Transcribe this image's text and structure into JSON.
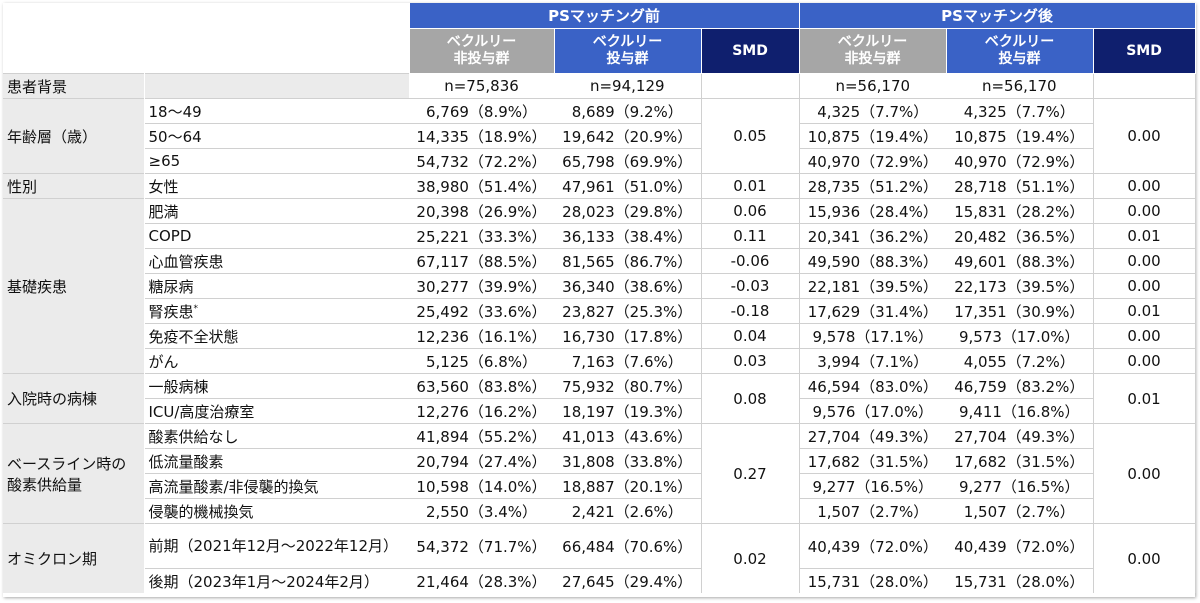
{
  "header": {
    "before_group": "PSマッチング前",
    "after_group": "PSマッチング後",
    "col_nonbec": [
      "ベクルリー",
      "非投与群"
    ],
    "col_bec": [
      "ベクルリー",
      "投与群"
    ],
    "col_smd": "SMD"
  },
  "background_row": {
    "label": "患者背景",
    "before_non": "n=75,836",
    "before_bec": "n=94,129",
    "after_non": "n=56,170",
    "after_bec": "n=56,170"
  },
  "rows": {
    "age": {
      "label": "年齢層（歳）",
      "smd_before": "0.05",
      "smd_after": "0.00",
      "items": [
        {
          "sub": "18～49",
          "bn": "6,769（8.9%）",
          "bb": "8,689（9.2%）",
          "an": "4,325（7.7%）",
          "ab": "4,325（7.7%）"
        },
        {
          "sub": "50～64",
          "bn": "14,335（18.9%）",
          "bb": "19,642（20.9%）",
          "an": "10,875（19.4%）",
          "ab": "10,875（19.4%）"
        },
        {
          "sub": "≥65",
          "bn": "54,732（72.2%）",
          "bb": "65,798（69.9%）",
          "an": "40,970（72.9%）",
          "ab": "40,970（72.9%）"
        }
      ]
    },
    "sex": {
      "label": "性別",
      "sub": "女性",
      "bn": "38,980（51.4%）",
      "bb": "47,961（51.0%）",
      "smd_before": "0.01",
      "an": "28,735（51.2%）",
      "ab": "28,718（51.1%）",
      "smd_after": "0.00"
    },
    "disease": {
      "label": "基礎疾患",
      "items": [
        {
          "sub": "肥満",
          "bn": "20,398（26.9%）",
          "bb": "28,023（29.8%）",
          "sb": "0.06",
          "an": "15,936（28.4%）",
          "ab": "15,831（28.2%）",
          "sa": "0.00"
        },
        {
          "sub": "COPD",
          "bn": "25,221（33.3%）",
          "bb": "36,133（38.4%）",
          "sb": "0.11",
          "an": "20,341（36.2%）",
          "ab": "20,482（36.5%）",
          "sa": "0.01"
        },
        {
          "sub": "心血管疾患",
          "bn": "67,117（88.5%）",
          "bb": "81,565（86.7%）",
          "sb": "-0.06",
          "an": "49,590（88.3%）",
          "ab": "49,601（88.3%）",
          "sa": "0.00"
        },
        {
          "sub": "糖尿病",
          "bn": "30,277（39.9%）",
          "bb": "36,340（38.6%）",
          "sb": "-0.03",
          "an": "22,181（39.5%）",
          "ab": "22,173（39.5%）",
          "sa": "0.00"
        },
        {
          "sub": "腎疾患",
          "sup": "*",
          "bn": "25,492（33.6%）",
          "bb": "23,827（25.3%）",
          "sb": "-0.18",
          "an": "17,629（31.4%）",
          "ab": "17,351（30.9%）",
          "sa": "0.01"
        },
        {
          "sub": "免疫不全状態",
          "bn": "12,236（16.1%）",
          "bb": "16,730（17.8%）",
          "sb": "0.04",
          "an": "9,578（17.1%）",
          "ab": "9,573（17.0%）",
          "sa": "0.00"
        },
        {
          "sub": "がん",
          "bn": "5,125（6.8%）",
          "bb": "7,163（7.6%）",
          "sb": "0.03",
          "an": "3,994（7.1%）",
          "ab": "4,055（7.2%）",
          "sa": "0.00"
        }
      ]
    },
    "ward": {
      "label": "入院時の病棟",
      "smd_before": "0.08",
      "smd_after": "0.01",
      "items": [
        {
          "sub": "一般病棟",
          "bn": "63,560（83.8%）",
          "bb": "75,932（80.7%）",
          "an": "46,594（83.0%）",
          "ab": "46,759（83.2%）"
        },
        {
          "sub": "ICU/高度治療室",
          "bn": "12,276（16.2%）",
          "bb": "18,197（19.3%）",
          "an": "9,576（17.0%）",
          "ab": "9,411（16.8%）"
        }
      ]
    },
    "oxygen": {
      "label": [
        "ベースライン時の",
        "酸素供給量"
      ],
      "smd_before": "0.27",
      "smd_after": "0.00",
      "items": [
        {
          "sub": "酸素供給なし",
          "bn": "41,894（55.2%）",
          "bb": "41,013（43.6%）",
          "an": "27,704（49.3%）",
          "ab": "27,704（49.3%）"
        },
        {
          "sub": "低流量酸素",
          "bn": "20,794（27.4%）",
          "bb": "31,808（33.8%）",
          "an": "17,682（31.5%）",
          "ab": "17,682（31.5%）"
        },
        {
          "sub": "高流量酸素/非侵襲的換気",
          "bn": "10,598（14.0%）",
          "bb": "18,887（20.1%）",
          "an": "9,277（16.5%）",
          "ab": "9,277（16.5%）"
        },
        {
          "sub": "侵襲的機械換気",
          "bn": "2,550（3.4%）",
          "bb": "2,421（2.6%）",
          "an": "1,507（2.7%）",
          "ab": "1,507（2.7%）"
        }
      ]
    },
    "omicron": {
      "label": "オミクロン期",
      "smd_before": "0.02",
      "smd_after": "0.00",
      "items": [
        {
          "sub": "前期（2021年12月～2022年12月）",
          "bn": "54,372（71.7%）",
          "bb": "66,484（70.6%）",
          "an": "40,439（72.0%）",
          "ab": "40,439（72.0%）"
        },
        {
          "sub": "後期（2023年1月～2024年2月）",
          "bn": "21,464（28.3%）",
          "bb": "27,645（29.4%）",
          "an": "15,731（28.0%）",
          "ab": "15,731（28.0%）"
        }
      ]
    }
  }
}
